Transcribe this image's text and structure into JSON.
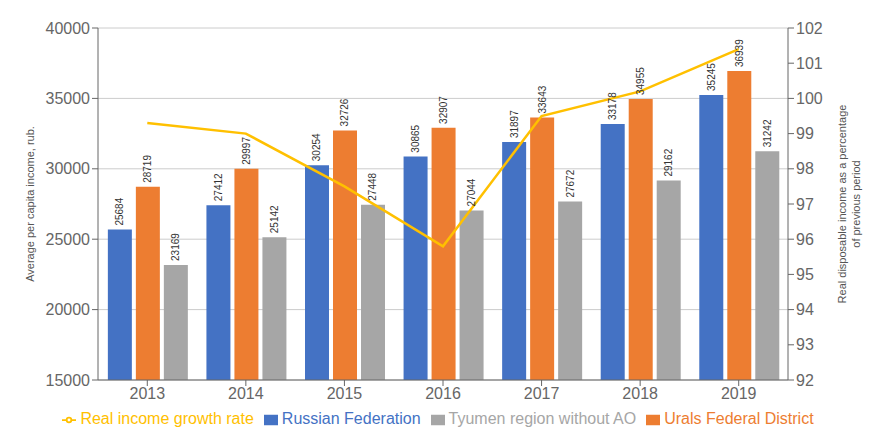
{
  "chart_data": {
    "type": "bar",
    "categories": [
      "2013",
      "2014",
      "2015",
      "2016",
      "2017",
      "2018",
      "2019"
    ],
    "series": [
      {
        "name": "Russian Federation",
        "type": "bar",
        "color": "#4472C4",
        "values": [
          25684,
          27412,
          30254,
          30865,
          31897,
          33178,
          35245
        ],
        "data_labels": true
      },
      {
        "name": "Urals Federal District",
        "type": "bar",
        "color": "#ED7D31",
        "values": [
          28719,
          29997,
          32726,
          32907,
          33643,
          34955,
          36939
        ],
        "data_labels": true
      },
      {
        "name": "Tyumen region without AO",
        "type": "bar",
        "color": "#A6A6A6",
        "values": [
          23169,
          25142,
          27448,
          27044,
          27672,
          29162,
          31242
        ],
        "data_labels": true
      },
      {
        "name": "Real income growth rate",
        "type": "line",
        "color": "#FFC000",
        "marker": "none",
        "axis": "y2",
        "values": [
          99.3,
          99.0,
          97.5,
          95.8,
          99.5,
          100.2,
          101.4
        ]
      }
    ],
    "ylabel": "Average per capita income, rub.",
    "y2label": "Real disposable income as a percentage\nof previous period",
    "ylim": [
      15000,
      40000
    ],
    "yticks": [
      15000,
      20000,
      25000,
      30000,
      35000,
      40000
    ],
    "y2lim": [
      92,
      102
    ],
    "y2ticks": [
      92,
      93,
      94,
      95,
      96,
      97,
      98,
      99,
      100,
      101,
      102
    ],
    "grid": true,
    "legend": "bottom"
  }
}
